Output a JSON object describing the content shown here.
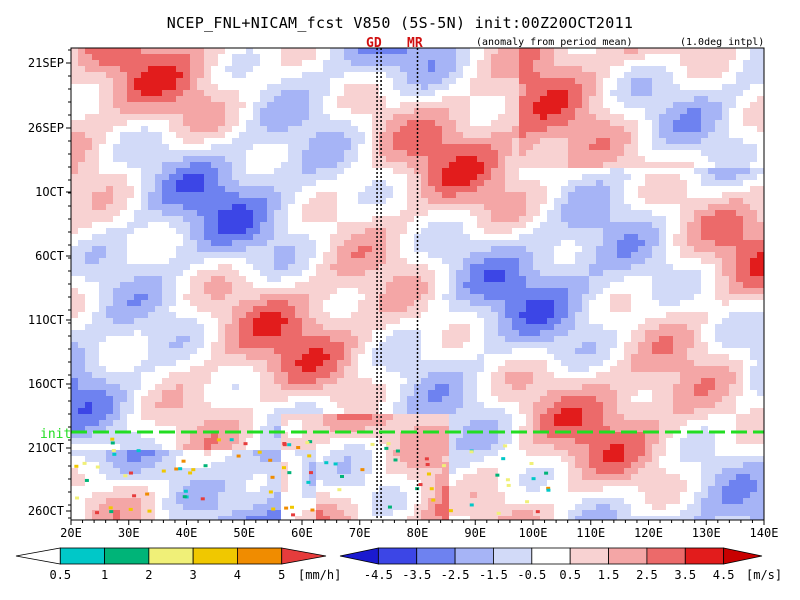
{
  "header": {
    "title": "NCEP_FNL+NICAM_fcst V850 (5S-5N) init:00Z20OCT2011",
    "anomaly_note": "(anomaly from period mean)",
    "interp_note": "(1.0deg intpl)",
    "marker_gd": "GD",
    "marker_mr": "MR",
    "init_label": "init"
  },
  "chart_data": {
    "type": "heatmap",
    "title": "NCEP_FNL+NICAM_fcst V850 (5S-5N) init:00Z20OCT2011",
    "x_ticks": [
      "20E",
      "30E",
      "40E",
      "50E",
      "60E",
      "70E",
      "80E",
      "90E",
      "100E",
      "110E",
      "120E",
      "130E",
      "140E"
    ],
    "x_values": [
      20,
      30,
      40,
      50,
      60,
      70,
      80,
      90,
      100,
      110,
      120,
      130,
      140
    ],
    "xlim": [
      20,
      140
    ],
    "y_ticks": [
      "21SEP",
      "26SEP",
      "1OCT",
      "6OCT",
      "11OCT",
      "16OCT",
      "21OCT",
      "26OCT"
    ],
    "ylim_dates": [
      "2011-09-21",
      "2011-10-27"
    ],
    "init_date": "2011-10-20",
    "marker_lines_lon": [
      73,
      80
    ],
    "wind_colorbar": {
      "levels": [
        "-4.5",
        "-3.5",
        "-2.5",
        "-1.5",
        "-0.5",
        "0.5",
        "1.5",
        "2.5",
        "3.5",
        "4.5"
      ],
      "colors": [
        "#1a1ad0",
        "#3c46e6",
        "#6e82f0",
        "#a6b4f6",
        "#d2daf8",
        "#ffffff",
        "#f8d2d2",
        "#f4a6a6",
        "#ec6a6a",
        "#e21c1c",
        "#c80000"
      ],
      "unit": "[m/s]"
    },
    "rain_colorbar": {
      "levels": [
        "0.5",
        "1",
        "2",
        "3",
        "4",
        "5"
      ],
      "colors": [
        "#ffffff",
        "#00c8c8",
        "#00b478",
        "#f0f078",
        "#f0c800",
        "#f08c00",
        "#e63c3c"
      ],
      "unit": "[mm/h]"
    }
  }
}
